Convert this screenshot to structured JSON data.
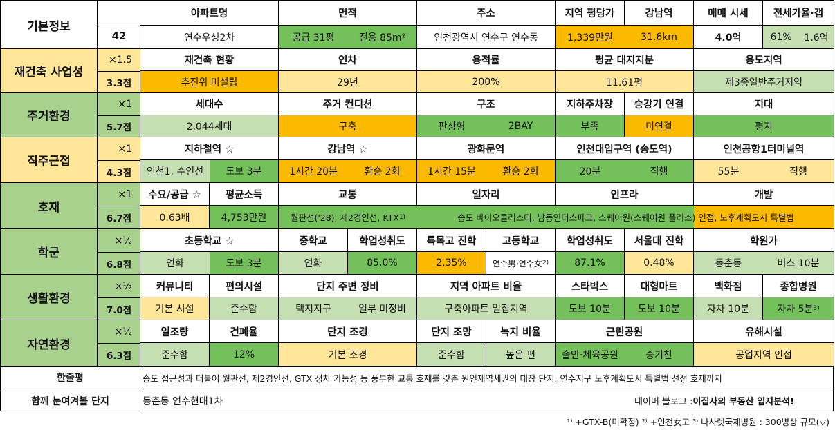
{
  "basic": {
    "title": "기본정보",
    "number": "42",
    "headers": [
      "아파트명",
      "면적",
      "주소",
      "지역 평당가",
      "강남역",
      "매매 시세",
      "전세가율·갭"
    ],
    "values": [
      "연수우성2차",
      "공급 31평",
      "전용 85m²",
      "인천광역시 연수구 연수동",
      "1,339만원",
      "31.6km",
      "4.0억",
      "61%",
      "1.6억"
    ]
  },
  "sections": [
    {
      "name": "재건축 사업성",
      "mult": "×1.5",
      "score": "3.3점",
      "headers": [
        "재건축 현황",
        "연차",
        "용적률",
        "평균 대지지분",
        "용도지역"
      ],
      "values": [
        "추진위 미설립",
        "29년",
        "200%",
        "11.61평",
        "제3종일반주거지역"
      ]
    },
    {
      "name": "주거환경",
      "mult": "×1",
      "score": "5.7점",
      "headers": [
        "세대수",
        "주거 컨디션",
        "구조",
        "지하주차장",
        "승강기 연결",
        "지대"
      ],
      "values": [
        "2,044세대",
        "구축",
        "판상형",
        "2BAY",
        "부족",
        "미연결",
        "평지"
      ]
    },
    {
      "name": "직주근접",
      "mult": "×1",
      "score": "4.3점",
      "headers": [
        "지하철역 ☆",
        "강남역 ☆",
        "광화문역",
        "인천대입구역 (송도역)",
        "인천공항1터미널역"
      ],
      "values": [
        "인천1, 수인선",
        "도보 3분",
        "1시간 20분",
        "환승 2회",
        "1시간 15분",
        "환승 2회",
        "20분",
        "직행",
        "55분",
        "직행"
      ]
    },
    {
      "name": "호재",
      "mult": "×1",
      "score": "6.7점",
      "headers": [
        "수요/공급 ☆",
        "평균소득",
        "교통",
        "일자리",
        "인프라",
        "개발"
      ],
      "values": [
        "0.63배",
        "4,753만원",
        "월판선('28), 제2경인선, KTX",
        "송도 바이오클러스터, 남동인더스파크, 스퀘어원(스퀘어원 플러스) 인접, 노후계획도시 특별법"
      ],
      "sup1": "1)"
    },
    {
      "name": "학군",
      "mult": "×½",
      "score": "6.8점",
      "headers": [
        "초등학교 ☆",
        "중학교",
        "학업성취도",
        "특목고 진학",
        "고등학교",
        "학업성취도",
        "서울대 진학",
        "학원가"
      ],
      "values": [
        "연화",
        "도보 3분",
        "연화",
        "85.0%",
        "2.35%",
        "연수男·연수女",
        "87.1%",
        "0.48%",
        "동춘동",
        "버스 10분"
      ],
      "sup2": "2)"
    },
    {
      "name": "생활환경",
      "mult": "×½",
      "score": "7.0점",
      "headers": [
        "커뮤니티",
        "편의시설",
        "단지 주변 정비",
        "지역 아파트 비율",
        "스타벅스",
        "대형마트",
        "백화점",
        "종합병원"
      ],
      "values": [
        "기본 시설",
        "준수함",
        "택지지구",
        "일부 미정비",
        "구축아파트 밀집지역",
        "도보 10분",
        "도보 10분",
        "자차 10분",
        "자차 5분"
      ],
      "sup3": "3)"
    },
    {
      "name": "자연환경",
      "mult": "×½",
      "score": "6.3점",
      "headers": [
        "일조량",
        "건폐율",
        "단지 조경",
        "단지 조망",
        "녹지 비율",
        "근린공원",
        "유해시설"
      ],
      "values": [
        "준수함",
        "12%",
        "기본 조경",
        "준수함",
        "높은 편",
        "솔안·체육공원",
        "승기천",
        "공업지역 인접"
      ]
    }
  ],
  "summary": {
    "label": "한줄평",
    "text": "송도 접근성과 더불어 월판선, 제2경인선, GTX 정차 가능성 등 풍부한 교통 호재를 갖춘 원인재역세권의 대장 단지. 연수지구 노후계획도시 특별법 선정 호재까지"
  },
  "related": {
    "label": "함께 눈여겨볼 단지",
    "value": "동춘동 연수현대1차",
    "blog_prefix": "네이버 블로그 : ",
    "blog_name": "이집사의 부동산 입지분석!"
  },
  "footnote": "¹⁾ +GTX-B(미확정) ²⁾ +인천女고 ³⁾ 나사렛국제병원 : 300병상 규모(▽)",
  "colors": {
    "gold": "#fbb900",
    "cream": "#ffe699",
    "green": "#74c05a",
    "light_green": "#c6dfb2",
    "section_green": "#a9d18e"
  }
}
